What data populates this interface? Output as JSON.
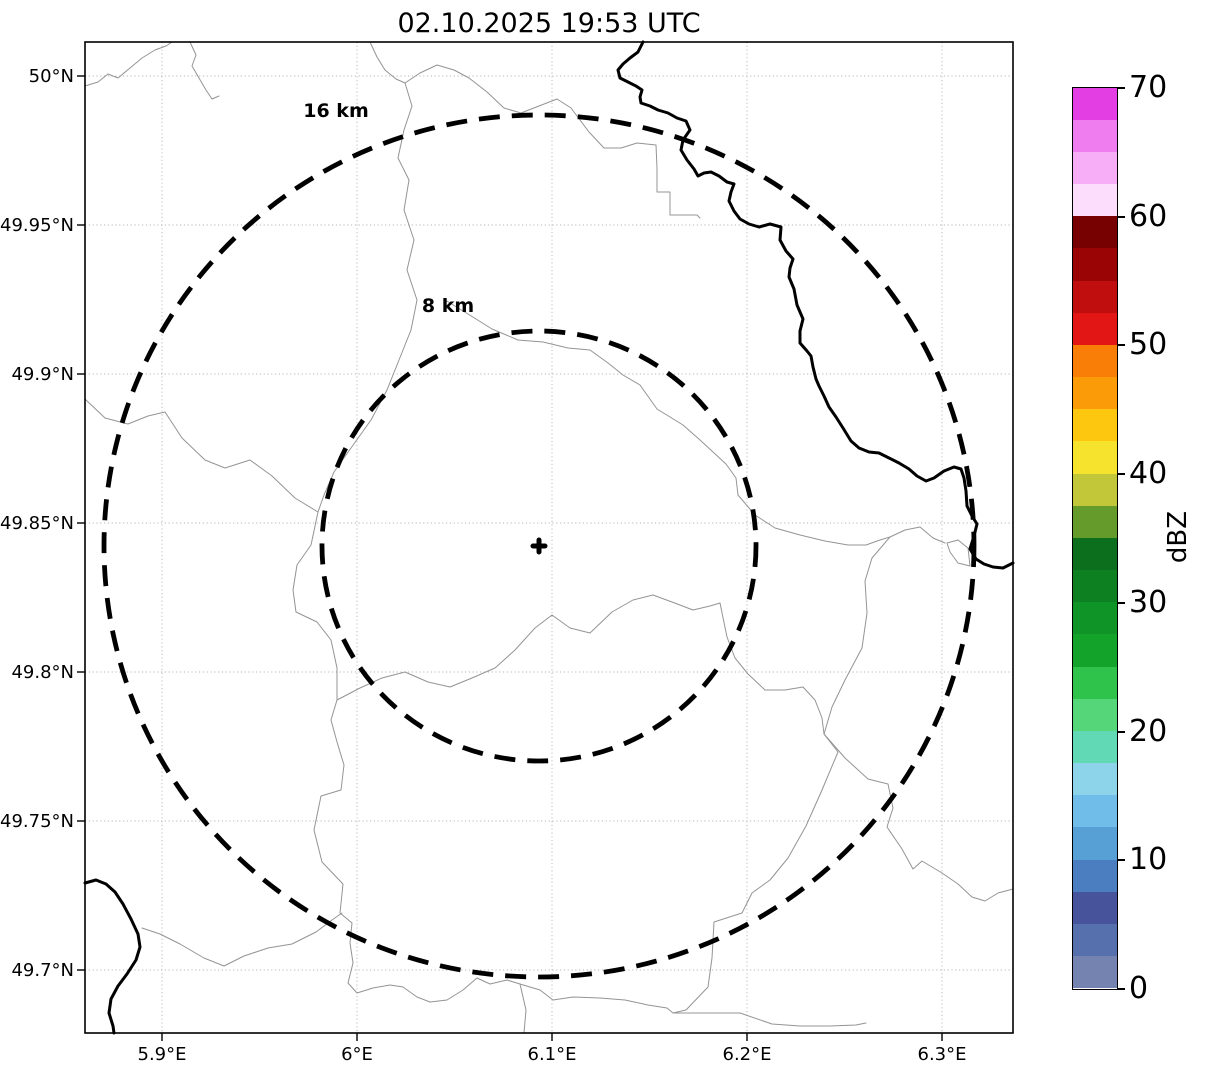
{
  "figure": {
    "title": "02.10.2025 19:53 UTC"
  },
  "map": {
    "x_tick_labels": [
      "5.9°E",
      "6°E",
      "6.1°E",
      "6.2°E",
      "6.3°E"
    ],
    "y_tick_labels": [
      "50°N",
      "49.95°N",
      "49.9°N",
      "49.85°N",
      "49.8°N",
      "49.75°N",
      "49.7°N"
    ],
    "range_rings": {
      "outer_label": "16 km",
      "inner_label": "8 km"
    }
  },
  "colorbar": {
    "label": "dBZ",
    "min": 0,
    "max": 70,
    "tick_values": [
      0,
      10,
      20,
      30,
      40,
      50,
      60,
      70
    ],
    "segment_step_dbz": 2.5,
    "colors_low_to_high": [
      "#7583b1",
      "#5570ad",
      "#47549c",
      "#4a7ec0",
      "#57a0d6",
      "#6fbde8",
      "#8dd3ea",
      "#62d9b5",
      "#55d678",
      "#2fc34c",
      "#14a32a",
      "#0f9427",
      "#0d8122",
      "#0c6f1e",
      "#649b2b",
      "#c2c73a",
      "#f5e32e",
      "#fdc70f",
      "#fb9b07",
      "#f87e07",
      "#e31616",
      "#c00d0d",
      "#9a0404",
      "#770000",
      "#fcdefc",
      "#f7aef7",
      "#f07df0",
      "#e33ee3"
    ]
  },
  "chart_data": {
    "type": "heatmap",
    "title": "02.10.2025 19:53 UTC",
    "subtitle": "weather radar reflectivity map with range rings",
    "xlabel": "",
    "ylabel": "",
    "x_ticks": [
      "5.9°E",
      "6°E",
      "6.1°E",
      "6.2°E",
      "6.3°E"
    ],
    "y_ticks": [
      "50°N",
      "49.95°N",
      "49.9°N",
      "49.85°N",
      "49.8°N",
      "49.75°N",
      "49.7°N"
    ],
    "xlim": [
      5.861,
      6.337
    ],
    "ylim": [
      49.678,
      50.012
    ],
    "grid": true,
    "radar_center": {
      "lon": 6.093,
      "lat": 49.842
    },
    "range_rings_km": [
      8,
      16
    ],
    "colorbar": {
      "label": "dBZ",
      "min": 0,
      "max": 70,
      "ticks": [
        0,
        10,
        20,
        30,
        40,
        50,
        60,
        70
      ],
      "step_dbz": 2.5
    },
    "values": "no reflectivity echoes visible (empty field); basemap shows administrative boundaries (thin gray) and border rivers (thick black)"
  }
}
